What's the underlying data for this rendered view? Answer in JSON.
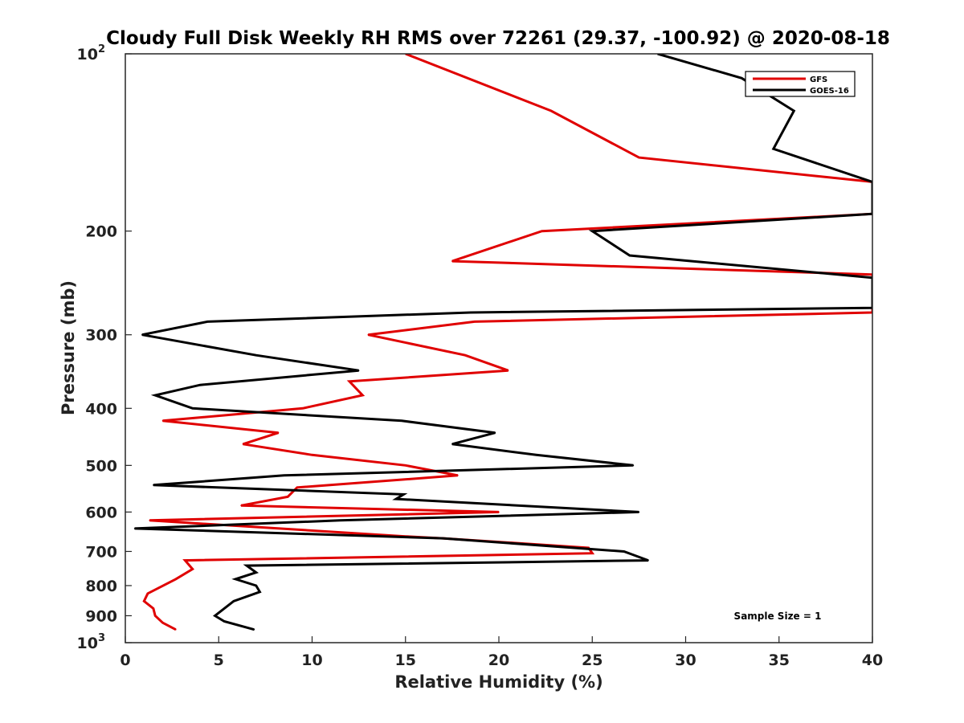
{
  "chart_data": {
    "type": "line",
    "orientation": "profile (x = relative humidity, y = pressure, log scale, inverted)",
    "title": "Cloudy Full Disk Weekly RH RMS over 72261 (29.37, -100.92) @ 2020-08-18",
    "xlabel": "Relative Humidity (%)",
    "ylabel": "Pressure (mb)",
    "xlim": [
      0,
      40
    ],
    "ylim": [
      100,
      1000
    ],
    "yscale": "log",
    "y_inverted": true,
    "grid": false,
    "legend_position": "top-right",
    "x_ticks": [
      "0",
      "5",
      "10",
      "15",
      "20",
      "25",
      "30",
      "35",
      "40"
    ],
    "y_ticks": [
      {
        "value": 100,
        "base": "10",
        "exp": "2"
      },
      {
        "value": 200,
        "label": "200"
      },
      {
        "value": 300,
        "label": "300"
      },
      {
        "value": 400,
        "label": "400"
      },
      {
        "value": 500,
        "label": "500"
      },
      {
        "value": 600,
        "label": "600"
      },
      {
        "value": 700,
        "label": "700"
      },
      {
        "value": 800,
        "label": "800"
      },
      {
        "value": 900,
        "label": "900"
      },
      {
        "value": 1000,
        "base": "10",
        "exp": "3"
      }
    ],
    "annotation": "Sample Size = 1",
    "series": [
      {
        "name": "GFS",
        "color": "#e00000",
        "points": [
          [
            15.0,
            100
          ],
          [
            22.8,
            125
          ],
          [
            27.5,
            150
          ],
          [
            40.0,
            165
          ],
          [
            40.0,
            187
          ],
          [
            22.3,
            200
          ],
          [
            17.5,
            225
          ],
          [
            40.0,
            237
          ],
          [
            40.0,
            275
          ],
          [
            18.7,
            285
          ],
          [
            13.0,
            300
          ],
          [
            18.2,
            325
          ],
          [
            20.5,
            345
          ],
          [
            12.0,
            360
          ],
          [
            12.7,
            380
          ],
          [
            9.5,
            400
          ],
          [
            2.0,
            420
          ],
          [
            8.2,
            440
          ],
          [
            6.3,
            460
          ],
          [
            10.0,
            480
          ],
          [
            15.0,
            500
          ],
          [
            17.8,
            520
          ],
          [
            9.2,
            545
          ],
          [
            8.7,
            565
          ],
          [
            6.2,
            585
          ],
          [
            20.0,
            600
          ],
          [
            1.3,
            620
          ],
          [
            15.0,
            660
          ],
          [
            17.0,
            665
          ],
          [
            24.8,
            690
          ],
          [
            25.0,
            705
          ],
          [
            3.2,
            725
          ],
          [
            3.6,
            750
          ],
          [
            2.7,
            780
          ],
          [
            1.2,
            825
          ],
          [
            1.0,
            850
          ],
          [
            1.5,
            875
          ],
          [
            1.6,
            900
          ],
          [
            2.0,
            925
          ],
          [
            2.7,
            950
          ]
        ]
      },
      {
        "name": "GOES-16",
        "color": "#000000",
        "points": [
          [
            28.5,
            100
          ],
          [
            33.0,
            110
          ],
          [
            35.8,
            125
          ],
          [
            34.7,
            145
          ],
          [
            40.0,
            165
          ],
          [
            40.0,
            187
          ],
          [
            25.0,
            200
          ],
          [
            27.0,
            220
          ],
          [
            40.0,
            240
          ],
          [
            40.0,
            270
          ],
          [
            18.5,
            275
          ],
          [
            4.4,
            285
          ],
          [
            0.9,
            300
          ],
          [
            7.0,
            325
          ],
          [
            12.5,
            345
          ],
          [
            4.0,
            365
          ],
          [
            1.6,
            380
          ],
          [
            3.6,
            400
          ],
          [
            14.8,
            420
          ],
          [
            19.8,
            440
          ],
          [
            17.5,
            460
          ],
          [
            22.0,
            480
          ],
          [
            27.2,
            500
          ],
          [
            8.5,
            520
          ],
          [
            1.5,
            540
          ],
          [
            14.9,
            560
          ],
          [
            14.5,
            570
          ],
          [
            27.5,
            600
          ],
          [
            11.5,
            620
          ],
          [
            0.5,
            640
          ],
          [
            17.0,
            665
          ],
          [
            26.7,
            700
          ],
          [
            28.0,
            725
          ],
          [
            6.5,
            740
          ],
          [
            7.0,
            760
          ],
          [
            5.9,
            780
          ],
          [
            7.0,
            800
          ],
          [
            7.2,
            820
          ],
          [
            5.8,
            850
          ],
          [
            4.8,
            900
          ],
          [
            5.3,
            920
          ],
          [
            6.9,
            950
          ]
        ]
      }
    ]
  }
}
